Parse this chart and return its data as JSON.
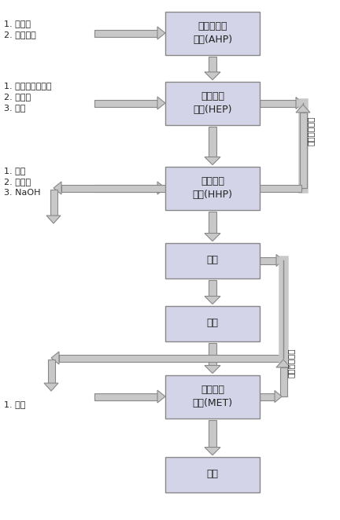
{
  "figsize": [
    4.32,
    6.61
  ],
  "dpi": 100,
  "bg_color": "#ffffff",
  "box_fill": "#d4d4e8",
  "box_edge": "#888888",
  "arrow_fill": "#c8c8c8",
  "arrow_edge": "#888888",
  "text_color": "#222222",
  "font_size_box": 9,
  "font_size_label": 8,
  "font_size_recycle": 7.5,
  "boxes": [
    {
      "id": "AHP",
      "label": "乙酰水合肼\n合成(AHP)"
    },
    {
      "id": "HEP",
      "label": "水合肼酯\n合成(HEP)"
    },
    {
      "id": "HHP",
      "label": "苯甲酰肼\n合成(HHP)"
    },
    {
      "id": "FIL",
      "label": "过滤"
    },
    {
      "id": "DRY1",
      "label": "干燥"
    },
    {
      "id": "MET",
      "label": "苯嗪草酮\n合成(MET)"
    },
    {
      "id": "DRY2",
      "label": "干燥"
    }
  ],
  "left_labels": [
    {
      "box": "AHP",
      "text": "1. 水合肼\n2. 醋酸甲酯"
    },
    {
      "box": "HEP",
      "text": "1. 苯甲酰甲酸甲酯\n2. 浓硫酸\n3. 甲醇"
    },
    {
      "box": "HHP",
      "text": "1. 甲醇\n2. 水合肼\n3. NaOH"
    },
    {
      "box": "MET",
      "text": "1. 丁醇"
    }
  ],
  "methanol_label": "甲醇回收套用",
  "butanol_label": "丁醇回收套用"
}
